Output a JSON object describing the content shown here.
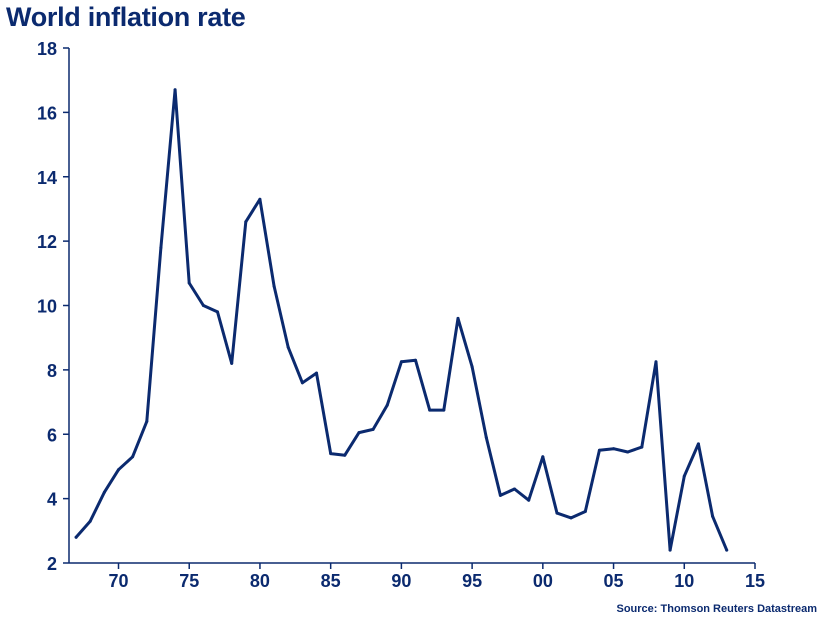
{
  "title": "World inflation rate",
  "source": "Source: Thomson Reuters Datastream",
  "colors": {
    "line": "#0b2a6f",
    "axis": "#0b2a6f",
    "text": "#0b2a6f"
  },
  "chart_data": {
    "type": "line",
    "title": "World inflation rate",
    "xlabel": "",
    "ylabel": "",
    "xlim": [
      1966.5,
      2015
    ],
    "ylim": [
      2,
      18
    ],
    "grid": false,
    "legend": "none",
    "x_ticks": [
      {
        "value": 1970,
        "label": "70"
      },
      {
        "value": 1975,
        "label": "75"
      },
      {
        "value": 1980,
        "label": "80"
      },
      {
        "value": 1985,
        "label": "85"
      },
      {
        "value": 1990,
        "label": "90"
      },
      {
        "value": 1995,
        "label": "95"
      },
      {
        "value": 2000,
        "label": "00"
      },
      {
        "value": 2005,
        "label": "05"
      },
      {
        "value": 2010,
        "label": "10"
      },
      {
        "value": 2015,
        "label": "15"
      }
    ],
    "y_ticks": [
      2,
      4,
      6,
      8,
      10,
      12,
      14,
      16,
      18
    ],
    "series": [
      {
        "x": [
          1967,
          1968,
          1969,
          1970,
          1971,
          1972,
          1973,
          1974,
          1975,
          1976,
          1977,
          1978,
          1979,
          1980,
          1981,
          1982,
          1983,
          1984,
          1985,
          1986,
          1987,
          1988,
          1989,
          1990,
          1991,
          1992,
          1993,
          1994,
          1995,
          1996,
          1997,
          1998,
          1999,
          2000,
          2001,
          2002,
          2003,
          2004,
          2005,
          2006,
          2007,
          2008,
          2009,
          2010,
          2011,
          2012,
          2013
        ],
        "values": [
          2.8,
          3.3,
          4.2,
          4.9,
          5.3,
          6.4,
          11.8,
          16.7,
          10.7,
          10.0,
          9.8,
          8.2,
          12.6,
          13.3,
          10.6,
          8.7,
          7.6,
          7.9,
          5.4,
          5.35,
          6.05,
          6.15,
          6.9,
          8.25,
          8.3,
          6.75,
          6.75,
          9.6,
          8.1,
          5.9,
          4.1,
          4.3,
          3.95,
          5.3,
          3.55,
          3.4,
          3.6,
          5.5,
          5.55,
          5.45,
          5.6,
          8.25,
          2.4,
          4.7,
          5.7,
          3.45,
          2.4
        ]
      }
    ]
  }
}
